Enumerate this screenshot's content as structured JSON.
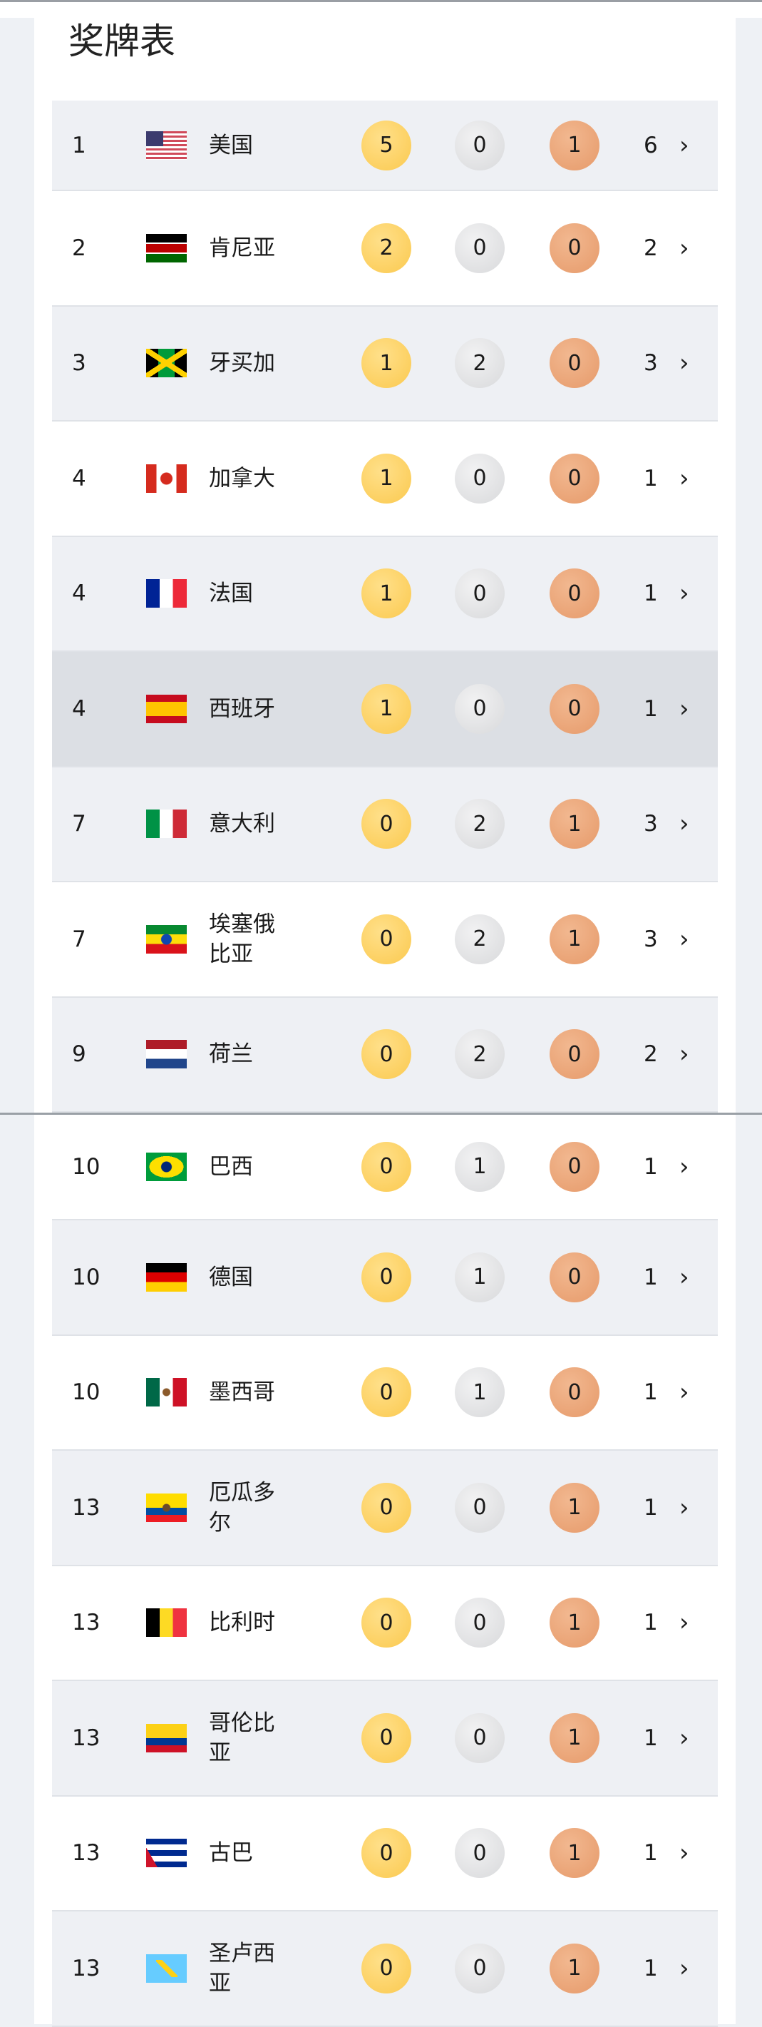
{
  "title": "奖牌表",
  "colors": {
    "gold": "#fbc94f",
    "silver": "#d8d9db",
    "bronze": "#e69a6a",
    "highlight_row": "#dcdfe4"
  },
  "rows": [
    {
      "rank": "1",
      "flag": "usa",
      "name": "美国",
      "gold": "5",
      "silver": "0",
      "bronze": "1",
      "total": "6",
      "chevron": "›"
    },
    {
      "rank": "2",
      "flag": "ken",
      "name": "肯尼亚",
      "gold": "2",
      "silver": "0",
      "bronze": "0",
      "total": "2",
      "chevron": "›"
    },
    {
      "rank": "3",
      "flag": "jam",
      "name": "牙买加",
      "gold": "1",
      "silver": "2",
      "bronze": "0",
      "total": "3",
      "chevron": "›"
    },
    {
      "rank": "4",
      "flag": "can",
      "name": "加拿大",
      "gold": "1",
      "silver": "0",
      "bronze": "0",
      "total": "1",
      "chevron": "›"
    },
    {
      "rank": "4",
      "flag": "fra",
      "name": "法国",
      "gold": "1",
      "silver": "0",
      "bronze": "0",
      "total": "1",
      "chevron": "›"
    },
    {
      "rank": "4",
      "flag": "esp",
      "name": "西班牙",
      "gold": "1",
      "silver": "0",
      "bronze": "0",
      "total": "1",
      "chevron": "›",
      "highlighted": true
    },
    {
      "rank": "7",
      "flag": "ita",
      "name": "意大利",
      "gold": "0",
      "silver": "2",
      "bronze": "1",
      "total": "3",
      "chevron": "›"
    },
    {
      "rank": "7",
      "flag": "eth",
      "name": "埃塞俄比亚",
      "gold": "0",
      "silver": "2",
      "bronze": "1",
      "total": "3",
      "chevron": "›"
    },
    {
      "rank": "9",
      "flag": "ned",
      "name": "荷兰",
      "gold": "0",
      "silver": "2",
      "bronze": "0",
      "total": "2",
      "chevron": "›"
    },
    {
      "rank": "10",
      "flag": "bra",
      "name": "巴西",
      "gold": "0",
      "silver": "1",
      "bronze": "0",
      "total": "1",
      "chevron": "›"
    },
    {
      "rank": "10",
      "flag": "ger",
      "name": "德国",
      "gold": "0",
      "silver": "1",
      "bronze": "0",
      "total": "1",
      "chevron": "›"
    },
    {
      "rank": "10",
      "flag": "mex",
      "name": "墨西哥",
      "gold": "0",
      "silver": "1",
      "bronze": "0",
      "total": "1",
      "chevron": "›"
    },
    {
      "rank": "13",
      "flag": "ecu",
      "name": "厄瓜多尔",
      "gold": "0",
      "silver": "0",
      "bronze": "1",
      "total": "1",
      "chevron": "›"
    },
    {
      "rank": "13",
      "flag": "bel",
      "name": "比利时",
      "gold": "0",
      "silver": "0",
      "bronze": "1",
      "total": "1",
      "chevron": "›"
    },
    {
      "rank": "13",
      "flag": "col",
      "name": "哥伦比亚",
      "gold": "0",
      "silver": "0",
      "bronze": "1",
      "total": "1",
      "chevron": "›"
    },
    {
      "rank": "13",
      "flag": "cub",
      "name": "古巴",
      "gold": "0",
      "silver": "0",
      "bronze": "1",
      "total": "1",
      "chevron": "›"
    },
    {
      "rank": "13",
      "flag": "lca",
      "name": "圣卢西亚",
      "gold": "0",
      "silver": "0",
      "bronze": "1",
      "total": "1",
      "chevron": "›"
    }
  ]
}
